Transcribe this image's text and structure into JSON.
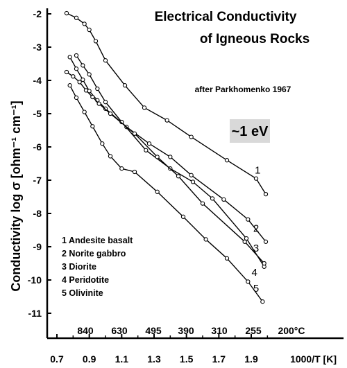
{
  "chart_data": {
    "type": "line",
    "title_line1": "Electrical Conductivity",
    "title_line2": "of Igneous Rocks",
    "credit": "after Parkhomenko 1967",
    "annotation": "~1 eV",
    "ylabel": "Conductivity log σ [ohm⁻¹ cm⁻¹]",
    "xlabel": "1000/T [K]",
    "ylim": [
      -11.3,
      -1.9
    ],
    "xlim": [
      0.67,
      2.05
    ],
    "yticks": [
      "-2",
      "-3",
      "-4",
      "-5",
      "-6",
      "-7",
      "-8",
      "-9",
      "-10",
      "-11"
    ],
    "xticks": [
      "0.7",
      "0.9",
      "1.1",
      "1.3",
      "1.5",
      "1.7",
      "1.9"
    ],
    "top_scale_labels": [
      "840",
      "630",
      "495",
      "390",
      "310",
      "255",
      "200°C"
    ],
    "legend": [
      "1 Andesite basalt",
      "2 Norite gabbro",
      "3 Diorite",
      "4 Peridotite",
      "5 Olivinite"
    ],
    "series": [
      {
        "name": "1",
        "x": [
          0.76,
          0.82,
          0.87,
          0.9,
          0.94,
          1.0,
          1.12,
          1.24,
          1.38,
          1.53,
          1.75,
          1.93,
          1.99
        ],
        "y": [
          -1.98,
          -2.12,
          -2.3,
          -2.48,
          -2.82,
          -3.4,
          -4.15,
          -4.82,
          -5.2,
          -5.7,
          -6.4,
          -6.95,
          -7.42
        ]
      },
      {
        "name": "2",
        "x": [
          0.78,
          0.82,
          0.86,
          0.9,
          0.95,
          1.0,
          1.13,
          1.27,
          1.4,
          1.53,
          1.73,
          1.88,
          1.99
        ],
        "y": [
          -3.3,
          -3.65,
          -3.98,
          -4.32,
          -4.6,
          -4.85,
          -5.4,
          -5.9,
          -6.3,
          -6.85,
          -7.58,
          -8.18,
          -8.85
        ]
      },
      {
        "name": "3",
        "x": [
          0.82,
          0.86,
          0.9,
          0.95,
          1.0,
          1.1,
          1.25,
          1.4,
          1.54,
          1.66,
          1.87,
          1.98
        ],
        "y": [
          -3.25,
          -3.55,
          -3.82,
          -4.25,
          -4.65,
          -5.25,
          -6.1,
          -6.65,
          -7.05,
          -7.55,
          -8.75,
          -9.6
        ]
      },
      {
        "name": "4",
        "x": [
          0.76,
          0.8,
          0.84,
          0.88,
          0.92,
          0.96,
          1.03,
          1.18,
          1.32,
          1.45,
          1.6,
          1.86,
          1.98
        ],
        "y": [
          -3.75,
          -3.88,
          -4.05,
          -4.3,
          -4.5,
          -4.7,
          -5.0,
          -5.6,
          -6.3,
          -6.88,
          -7.7,
          -8.85,
          -9.5
        ]
      },
      {
        "name": "5",
        "x": [
          0.78,
          0.82,
          0.87,
          0.92,
          0.98,
          1.03,
          1.1,
          1.18,
          1.32,
          1.48,
          1.62,
          1.75,
          1.88,
          1.97
        ],
        "y": [
          -4.15,
          -4.52,
          -4.95,
          -5.38,
          -5.9,
          -6.28,
          -6.65,
          -6.75,
          -7.35,
          -8.1,
          -8.78,
          -9.35,
          -10.05,
          -10.65
        ]
      }
    ],
    "series_label_positions": [
      {
        "label": "1",
        "x": 1.94,
        "y": -6.8
      },
      {
        "label": "2",
        "x": 1.93,
        "y": -8.55
      },
      {
        "label": "3",
        "x": 1.93,
        "y": -9.15
      },
      {
        "label": "4",
        "x": 1.92,
        "y": -9.88
      },
      {
        "label": "5",
        "x": 1.93,
        "y": -10.35
      }
    ],
    "grid": false,
    "legend_placement": "bottom-left",
    "colors": {
      "line": "#000000",
      "badge_bg": "#d9d9d9"
    }
  }
}
